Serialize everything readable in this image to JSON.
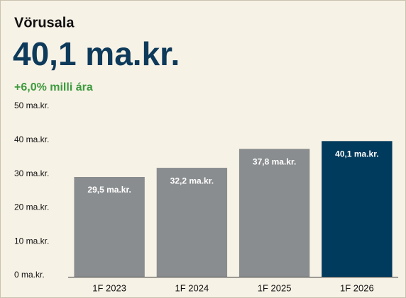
{
  "chart_data": {
    "type": "bar",
    "title": "Vörusala",
    "kpi": "40,1 ma.kr.",
    "change": "+6,0% milli ára",
    "categories": [
      "1F 2023",
      "1F 2024",
      "1F 2025",
      "1F 2026"
    ],
    "values": [
      29.5,
      32.2,
      37.8,
      40.1
    ],
    "value_labels": [
      "29,5 ma.kr.",
      "32,2 ma.kr.",
      "37,8 ma.kr.",
      "40,1 ma.kr."
    ],
    "colors": [
      "#8a8d8f",
      "#8a8d8f",
      "#8a8d8f",
      "#003a5c"
    ],
    "ylim": [
      0,
      50
    ],
    "yticks": [
      {
        "value": 0,
        "label": "0 ma.kr."
      },
      {
        "value": 10,
        "label": "10 ma.kr."
      },
      {
        "value": 20,
        "label": "20 ma.kr."
      },
      {
        "value": 30,
        "label": "30 ma.kr."
      },
      {
        "value": 40,
        "label": "40 ma.kr."
      },
      {
        "value": 50,
        "label": "50 ma.kr."
      }
    ],
    "grid": false
  }
}
